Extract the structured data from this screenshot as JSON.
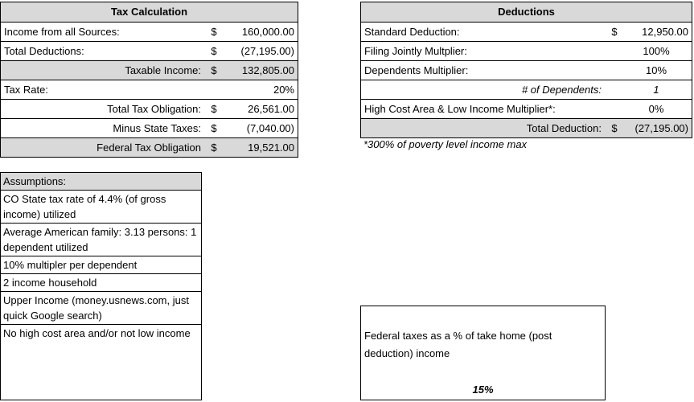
{
  "tax_calculation": {
    "title": "Tax Calculation",
    "rows": [
      {
        "label": "Income from all Sources:",
        "currency": "$",
        "value": "160,000.00"
      },
      {
        "label": "Total Deductions:",
        "currency": "$",
        "value": "(27,195.00)"
      },
      {
        "label": "Taxable Income:",
        "currency": "$",
        "value": "132,805.00"
      },
      {
        "label": "Tax Rate:",
        "value": "20%"
      },
      {
        "label": "Total Tax Obligation:",
        "currency": "$",
        "value": "26,561.00"
      },
      {
        "label": "Minus State Taxes:",
        "currency": "$",
        "value": "(7,040.00)"
      },
      {
        "label": "Federal Tax Obligation",
        "currency": "$",
        "value": "19,521.00"
      }
    ]
  },
  "deductions": {
    "title": "Deductions",
    "rows": [
      {
        "label": "Standard Deduction:",
        "currency": "$",
        "value": "12,950.00"
      },
      {
        "label": "Filing Jointly Multplier:",
        "value": "100%"
      },
      {
        "label": "Dependents Multiplier:",
        "value": "10%"
      },
      {
        "label": "# of Dependents:",
        "value": "1"
      },
      {
        "label": "High Cost Area & Low Income Multiplier*:",
        "value": "0%"
      },
      {
        "label": "Total Deduction:",
        "currency": "$",
        "value": "(27,195.00)"
      }
    ],
    "note": "*300% of poverty level income max"
  },
  "assumptions": {
    "title": "Assumptions:",
    "items": [
      "CO State tax rate of 4.4% (of gross income) utilized",
      "Average American family: 3.13 persons: 1 dependent utilized",
      "10% multipler per dependent",
      "2 income household",
      "Upper Income (money.usnews.com, just quick Google search)",
      "No high cost area and/or not low income"
    ]
  },
  "summary": {
    "text": "Federal taxes as a % of take home (post deduction) income",
    "value": "15%"
  }
}
